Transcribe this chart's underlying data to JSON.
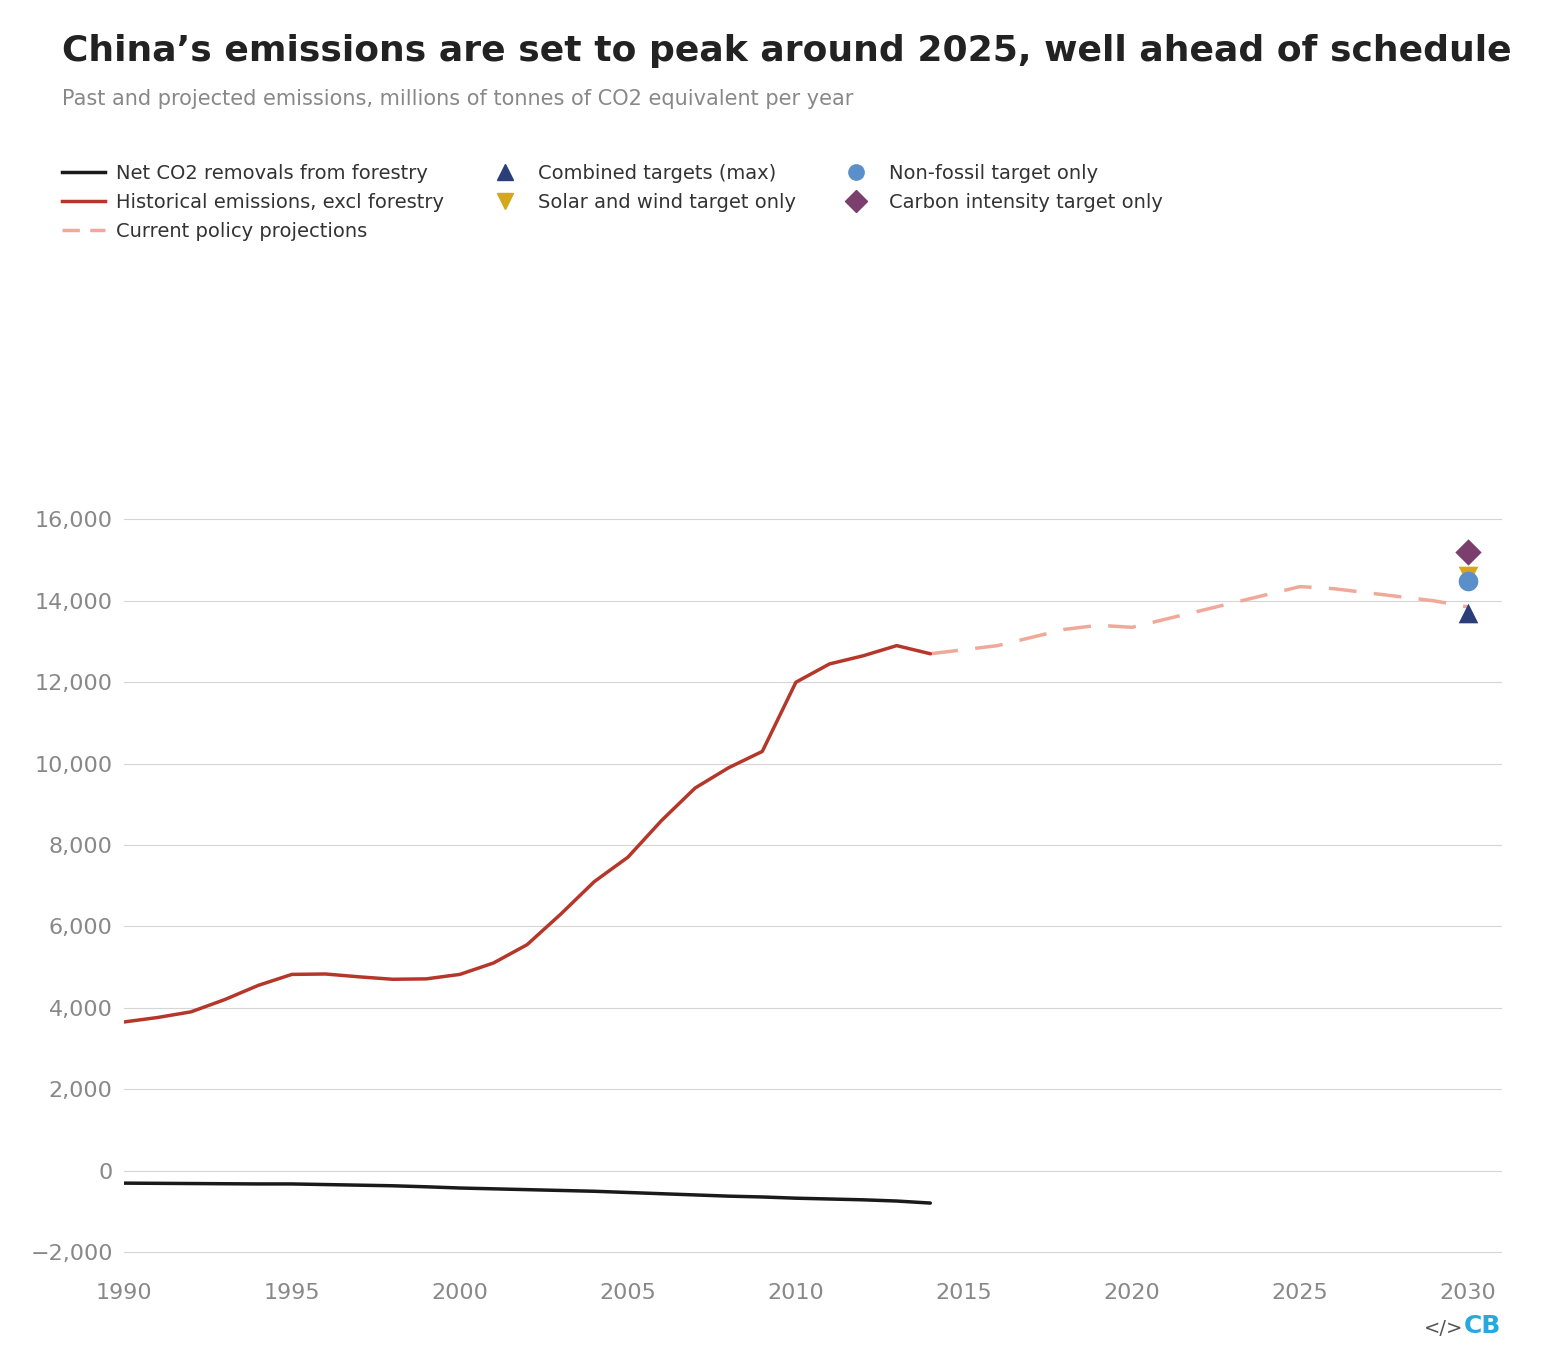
{
  "title": "China’s emissions are set to peak around 2025, well ahead of schedule",
  "subtitle": "Past and projected emissions, millions of tonnes of CO2 equivalent per year",
  "background_color": "#ffffff",
  "title_color": "#222222",
  "subtitle_color": "#888888",
  "historical_emissions": {
    "years": [
      1990,
      1991,
      1992,
      1993,
      1994,
      1995,
      1996,
      1997,
      1998,
      1999,
      2000,
      2001,
      2002,
      2003,
      2004,
      2005,
      2006,
      2007,
      2008,
      2009,
      2010,
      2011,
      2012,
      2013,
      2014
    ],
    "values": [
      3650,
      3760,
      3900,
      4200,
      4550,
      4820,
      4830,
      4760,
      4700,
      4710,
      4820,
      5100,
      5550,
      6300,
      7100,
      7700,
      8600,
      9400,
      9900,
      10300,
      12000,
      12450,
      12650,
      12900,
      12700
    ],
    "color": "#b5372a",
    "linewidth": 2.5
  },
  "net_co2_forestry": {
    "years": [
      1990,
      1991,
      1992,
      1993,
      1994,
      1995,
      1996,
      1997,
      1998,
      1999,
      2000,
      2001,
      2002,
      2003,
      2004,
      2005,
      2006,
      2007,
      2008,
      2009,
      2010,
      2011,
      2012,
      2013,
      2014
    ],
    "values": [
      -310,
      -315,
      -320,
      -325,
      -330,
      -330,
      -345,
      -360,
      -375,
      -400,
      -430,
      -450,
      -470,
      -490,
      -510,
      -540,
      -570,
      -600,
      -630,
      -650,
      -680,
      -700,
      -720,
      -750,
      -800
    ],
    "color": "#1a1a1a",
    "linewidth": 2.5
  },
  "current_policy_projection": {
    "years": [
      2014,
      2015,
      2016,
      2017,
      2018,
      2019,
      2020,
      2021,
      2022,
      2023,
      2024,
      2025,
      2026,
      2027,
      2028,
      2029,
      2030
    ],
    "values": [
      12700,
      12800,
      12900,
      13100,
      13300,
      13400,
      13350,
      13550,
      13750,
      13950,
      14150,
      14350,
      14300,
      14200,
      14100,
      14000,
      13850
    ],
    "color": "#f0a899",
    "linewidth": 2.5
  },
  "targets_2030": {
    "carbon_intensity": {
      "value": 15200,
      "color": "#7b3f6e",
      "marker": "D",
      "size": 180,
      "label": "Carbon intensity target only"
    },
    "solar_wind": {
      "value": 14620,
      "color": "#d4a817",
      "marker": "v",
      "size": 200,
      "label": "Solar and wind target only"
    },
    "non_fossil": {
      "value": 14500,
      "color": "#5b8fc9",
      "marker": "o",
      "size": 200,
      "label": "Non-fossil target only"
    },
    "combined_max": {
      "value": 13700,
      "color": "#2c3e7a",
      "marker": "^",
      "size": 200,
      "label": "Combined targets (max)"
    }
  },
  "xlim": [
    1990,
    2031
  ],
  "ylim": [
    -2500,
    17000
  ],
  "yticks": [
    -2000,
    0,
    2000,
    4000,
    6000,
    8000,
    10000,
    12000,
    14000,
    16000
  ],
  "xticks": [
    1990,
    1995,
    2000,
    2005,
    2010,
    2015,
    2020,
    2025,
    2030
  ],
  "grid_color": "#d5d5d5",
  "tick_color": "#888888",
  "tick_fontsize": 16,
  "title_fontsize": 26,
  "subtitle_fontsize": 15,
  "legend_fontsize": 14
}
